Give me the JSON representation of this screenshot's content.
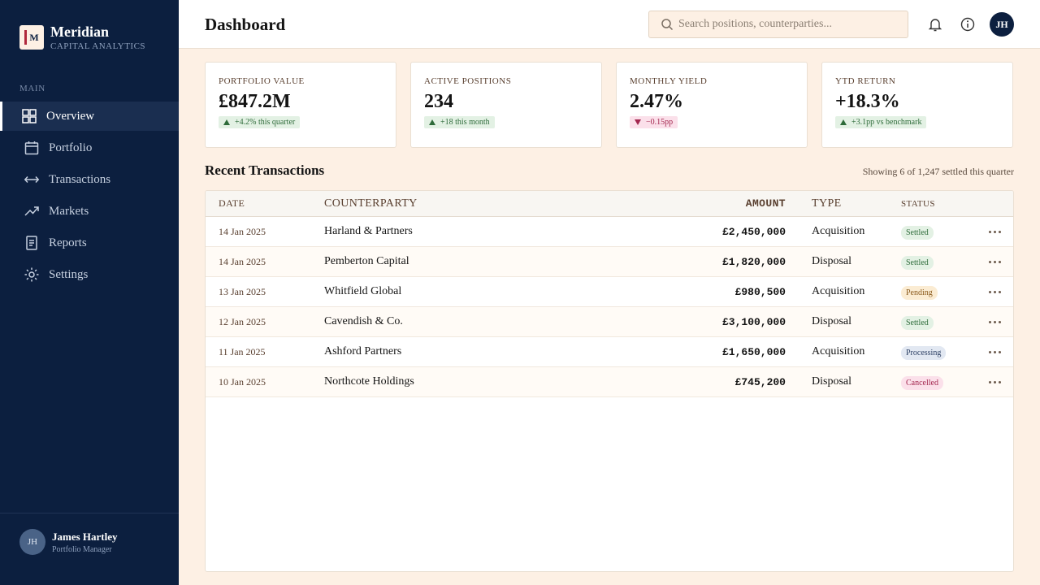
{
  "brand": {
    "logo": "M",
    "name": "Meridian",
    "tagline": "CAPITAL ANALYTICS"
  },
  "nav": {
    "section": "MAIN",
    "items": [
      "Overview",
      "Portfolio",
      "Transactions",
      "Markets",
      "Reports",
      "Settings"
    ],
    "active": 0
  },
  "user": {
    "initials": "JH",
    "name": "James Hartley",
    "role": "Portfolio Manager"
  },
  "header": {
    "title": "Dashboard",
    "search_placeholder": "Search positions, counterparties...",
    "avatar": "JH"
  },
  "kpis": [
    {
      "label": "PORTFOLIO VALUE",
      "value": "£847.2M",
      "delta": "+4.2% this quarter",
      "trend": "up"
    },
    {
      "label": "ACTIVE POSITIONS",
      "value": "234",
      "delta": "+18 this month",
      "trend": "up"
    },
    {
      "label": "MONTHLY YIELD",
      "value": "2.47%",
      "delta": "−0.15pp",
      "trend": "down"
    },
    {
      "label": "YTD RETURN",
      "value": "+18.3%",
      "delta": "+3.1pp vs benchmark",
      "trend": "up"
    }
  ],
  "transactions": {
    "title": "Recent Transactions",
    "summary": "Showing 6 of 1,247 settled this quarter",
    "columns": [
      "DATE",
      "COUNTERPARTY",
      "AMOUNT",
      "TYPE",
      "STATUS"
    ],
    "rows": [
      {
        "date": "14 Jan 2025",
        "counterparty": "Harland & Partners",
        "amount": "£2,450,000",
        "type": "Acquisition",
        "status": "Settled",
        "status_bg": "#e3f1e4",
        "status_fg": "#2e6b3a"
      },
      {
        "date": "14 Jan 2025",
        "counterparty": "Pemberton Capital",
        "amount": "£1,820,000",
        "type": "Disposal",
        "status": "Settled",
        "status_bg": "#e3f1e4",
        "status_fg": "#2e6b3a"
      },
      {
        "date": "13 Jan 2025",
        "counterparty": "Whitfield Global",
        "amount": "£980,500",
        "type": "Acquisition",
        "status": "Pending",
        "status_bg": "#fbecd3",
        "status_fg": "#8a5a1c"
      },
      {
        "date": "12 Jan 2025",
        "counterparty": "Cavendish & Co.",
        "amount": "£3,100,000",
        "type": "Disposal",
        "status": "Settled",
        "status_bg": "#e3f1e4",
        "status_fg": "#2e6b3a"
      },
      {
        "date": "11 Jan 2025",
        "counterparty": "Ashford Partners",
        "amount": "£1,650,000",
        "type": "Acquisition",
        "status": "Processing",
        "status_bg": "#e2e8f2",
        "status_fg": "#2c3f63"
      },
      {
        "date": "10 Jan 2025",
        "counterparty": "Northcote Holdings",
        "amount": "£745,200",
        "type": "Disposal",
        "status": "Cancelled",
        "status_bg": "#fbe0ea",
        "status_fg": "#a3264f"
      }
    ]
  }
}
